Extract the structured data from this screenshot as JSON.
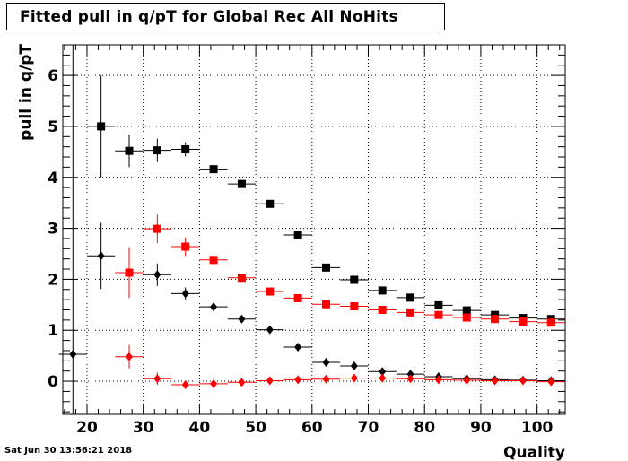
{
  "title": "Fitted pull in q/pT for Global Rec All NoHits",
  "timestamp": "Sat Jun 30 13:56:21 2018",
  "chart_data": {
    "type": "scatter",
    "title": "Fitted pull in q/pT for Global Rec All NoHits",
    "xlabel": "Quality",
    "ylabel": "pull in q/pT",
    "xlim": [
      15.7,
      105
    ],
    "ylim": [
      -0.65,
      6.6
    ],
    "xticks": [
      20,
      30,
      40,
      50,
      60,
      70,
      80,
      90,
      100
    ],
    "yticks": [
      0,
      1,
      2,
      3,
      4,
      5,
      6
    ],
    "grid": true,
    "series": [
      {
        "color": "#000000",
        "marker": "square",
        "points": [
          {
            "x": 22.5,
            "y": 5.0,
            "ey": 1.0
          },
          {
            "x": 27.5,
            "y": 4.52,
            "ey": 0.32
          },
          {
            "x": 32.5,
            "y": 4.53,
            "ey": 0.23
          },
          {
            "x": 37.5,
            "y": 4.55,
            "ey": 0.14
          },
          {
            "x": 42.5,
            "y": 4.16,
            "ey": 0.07
          },
          {
            "x": 47.5,
            "y": 3.87,
            "ey": 0.04
          },
          {
            "x": 52.5,
            "y": 3.48,
            "ey": 0.03
          },
          {
            "x": 57.5,
            "y": 2.87,
            "ey": 0.03
          },
          {
            "x": 62.5,
            "y": 2.23,
            "ey": 0.03
          },
          {
            "x": 67.5,
            "y": 1.99,
            "ey": 0.03
          },
          {
            "x": 72.5,
            "y": 1.78,
            "ey": 0.03
          },
          {
            "x": 77.5,
            "y": 1.64,
            "ey": 0.03
          },
          {
            "x": 82.5,
            "y": 1.49,
            "ey": 0.03
          },
          {
            "x": 87.5,
            "y": 1.39,
            "ey": 0.03
          },
          {
            "x": 92.5,
            "y": 1.3,
            "ey": 0.03
          },
          {
            "x": 97.5,
            "y": 1.24,
            "ey": 0.03
          },
          {
            "x": 102.5,
            "y": 1.22,
            "ey": 0.03
          }
        ]
      },
      {
        "color": "#ff0000",
        "marker": "square",
        "points": [
          {
            "x": 27.5,
            "y": 2.13,
            "ey": 0.5
          },
          {
            "x": 32.5,
            "y": 2.99,
            "ey": 0.28
          },
          {
            "x": 37.5,
            "y": 2.64,
            "ey": 0.18
          },
          {
            "x": 42.5,
            "y": 2.38,
            "ey": 0.08
          },
          {
            "x": 47.5,
            "y": 2.03,
            "ey": 0.04
          },
          {
            "x": 52.5,
            "y": 1.76,
            "ey": 0.03
          },
          {
            "x": 57.5,
            "y": 1.63,
            "ey": 0.03
          },
          {
            "x": 62.5,
            "y": 1.51,
            "ey": 0.03
          },
          {
            "x": 67.5,
            "y": 1.47,
            "ey": 0.03
          },
          {
            "x": 72.5,
            "y": 1.4,
            "ey": 0.03
          },
          {
            "x": 77.5,
            "y": 1.35,
            "ey": 0.03
          },
          {
            "x": 82.5,
            "y": 1.3,
            "ey": 0.03
          },
          {
            "x": 87.5,
            "y": 1.25,
            "ey": 0.03
          },
          {
            "x": 92.5,
            "y": 1.22,
            "ey": 0.03
          },
          {
            "x": 97.5,
            "y": 1.17,
            "ey": 0.03
          },
          {
            "x": 102.5,
            "y": 1.15,
            "ey": 0.03
          }
        ]
      },
      {
        "color": "#000000",
        "marker": "diamond",
        "points": [
          {
            "x": 17.5,
            "y": 0.53,
            "ey": 0.0
          },
          {
            "x": 22.5,
            "y": 2.46,
            "ey": 0.65
          },
          {
            "x": 32.5,
            "y": 2.09,
            "ey": 0.22
          },
          {
            "x": 37.5,
            "y": 1.72,
            "ey": 0.12
          },
          {
            "x": 42.5,
            "y": 1.46,
            "ey": 0.05
          },
          {
            "x": 47.5,
            "y": 1.22,
            "ey": 0.03
          },
          {
            "x": 52.5,
            "y": 1.01,
            "ey": 0.02
          },
          {
            "x": 57.5,
            "y": 0.67,
            "ey": 0.02
          },
          {
            "x": 62.5,
            "y": 0.37,
            "ey": 0.02
          },
          {
            "x": 67.5,
            "y": 0.3,
            "ey": 0.02
          },
          {
            "x": 72.5,
            "y": 0.19,
            "ey": 0.02
          },
          {
            "x": 77.5,
            "y": 0.14,
            "ey": 0.02
          },
          {
            "x": 82.5,
            "y": 0.09,
            "ey": 0.02
          },
          {
            "x": 87.5,
            "y": 0.05,
            "ey": 0.02
          },
          {
            "x": 92.5,
            "y": 0.03,
            "ey": 0.02
          },
          {
            "x": 97.5,
            "y": 0.02,
            "ey": 0.02
          },
          {
            "x": 102.5,
            "y": 0.01,
            "ey": 0.02
          }
        ]
      },
      {
        "color": "#ff0000",
        "marker": "diamond",
        "points": [
          {
            "x": 27.5,
            "y": 0.48,
            "ey": 0.23
          },
          {
            "x": 32.5,
            "y": 0.05,
            "ey": 0.12
          },
          {
            "x": 37.5,
            "y": -0.07,
            "ey": 0.06
          },
          {
            "x": 42.5,
            "y": -0.05,
            "ey": 0.03
          },
          {
            "x": 47.5,
            "y": -0.02,
            "ey": 0.02
          },
          {
            "x": 52.5,
            "y": 0.01,
            "ey": 0.02
          },
          {
            "x": 57.5,
            "y": 0.03,
            "ey": 0.02
          },
          {
            "x": 62.5,
            "y": 0.04,
            "ey": 0.02
          },
          {
            "x": 67.5,
            "y": 0.06,
            "ey": 0.02
          },
          {
            "x": 72.5,
            "y": 0.06,
            "ey": 0.02
          },
          {
            "x": 77.5,
            "y": 0.05,
            "ey": 0.02
          },
          {
            "x": 82.5,
            "y": 0.03,
            "ey": 0.02
          },
          {
            "x": 87.5,
            "y": 0.02,
            "ey": 0.02
          },
          {
            "x": 92.5,
            "y": 0.01,
            "ey": 0.02
          },
          {
            "x": 97.5,
            "y": 0.01,
            "ey": 0.02
          },
          {
            "x": 102.5,
            "y": -0.01,
            "ey": 0.02
          }
        ]
      }
    ]
  }
}
